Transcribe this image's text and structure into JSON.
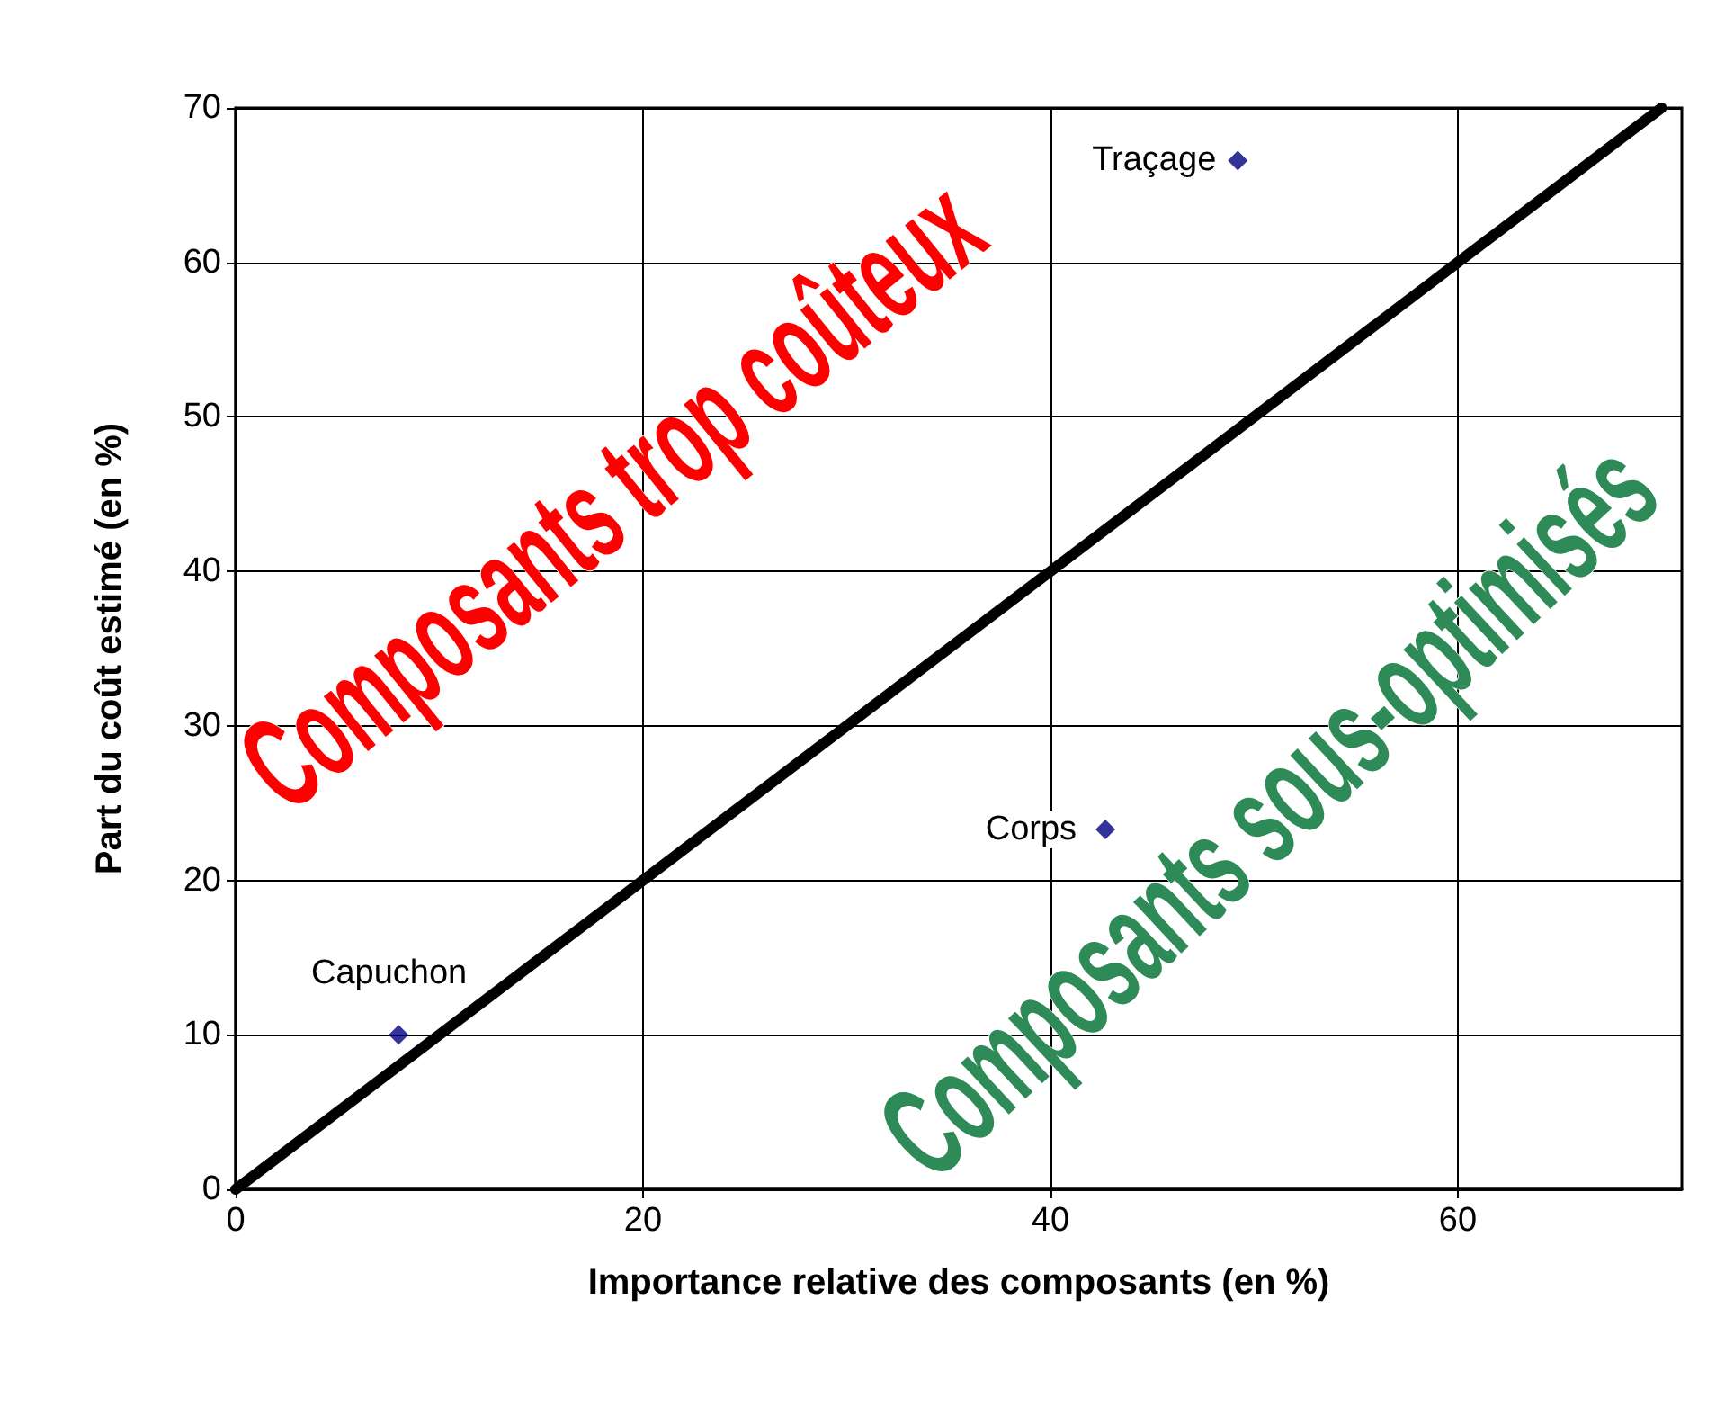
{
  "chart_data": {
    "type": "scatter",
    "xlabel": "Importance relative des composants (en %)",
    "ylabel": "Part du coût estimé (en %)",
    "series": [
      {
        "type": "scatter",
        "color": "#000080",
        "x": [
          8,
          42.7,
          49.2
        ],
        "values": [
          10,
          23.3,
          66.6
        ],
        "marker": "diamond"
      },
      {
        "type": "line",
        "color": "#000000",
        "x": [
          0,
          70
        ],
        "values": [
          0,
          70
        ],
        "marker": "none"
      }
    ],
    "annotations": [
      {
        "text": "Capuchon",
        "x": 8,
        "y": 10
      },
      {
        "text": "Corps",
        "x": 42.7,
        "y": 23.3
      },
      {
        "text": "Traçage",
        "x": 49.2,
        "y": 66.6
      },
      "Composants trop coûteux",
      "Composants sous-optimisés"
    ],
    "xlim": [
      0,
      71
    ],
    "xticks": [
      0,
      20,
      40,
      60
    ],
    "ylim": [
      0,
      70
    ],
    "yticks": [
      0,
      10,
      20,
      30,
      40,
      50,
      60,
      70
    ],
    "grid": true
  }
}
